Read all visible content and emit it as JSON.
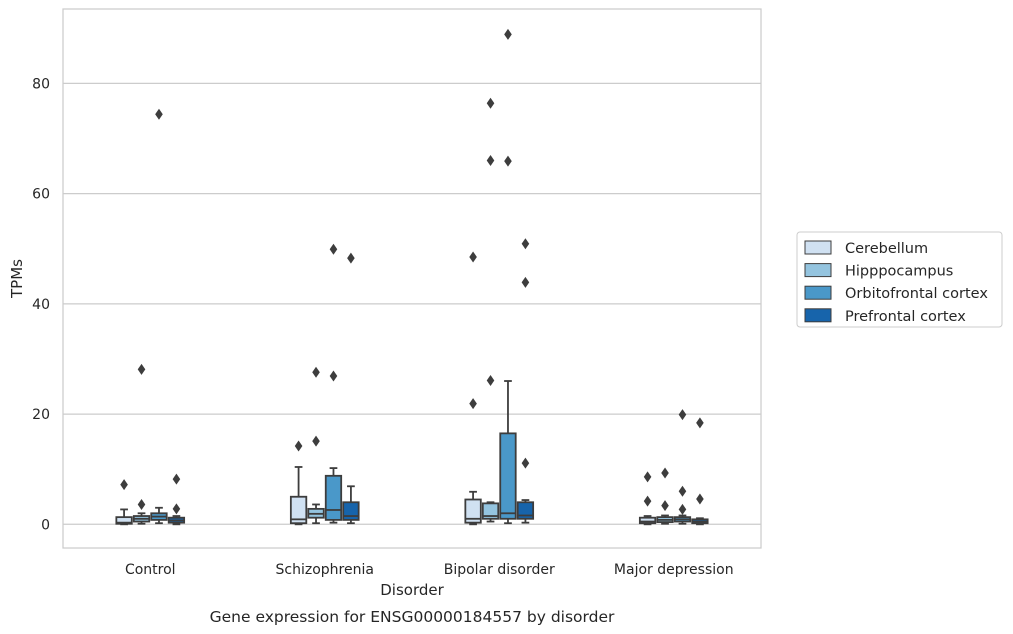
{
  "chart_data": {
    "type": "box",
    "xlabel": "Disorder",
    "ylabel": "TPMs",
    "caption": "Gene expression for ENSG00000184557 by disorder",
    "categories": [
      "Control",
      "Schizophrenia",
      "Bipolar disorder",
      "Major depression"
    ],
    "ylim": [
      -4.3,
      93.5
    ],
    "yticks": [
      0,
      20,
      40,
      60,
      80
    ],
    "grid": "horizontal",
    "legend_position": "right",
    "series": [
      {
        "name": "Cerebellum",
        "color": "#d0e1f2",
        "boxes": [
          {
            "q1": 0.1,
            "median": 0.3,
            "q3": 1.3,
            "whisker_low": 0.0,
            "whisker_high": 2.7,
            "outliers": [
              7.2
            ]
          },
          {
            "q1": 0.2,
            "median": 0.9,
            "q3": 5.0,
            "whisker_low": 0.0,
            "whisker_high": 10.4,
            "outliers": [
              14.2
            ]
          },
          {
            "q1": 0.3,
            "median": 1.0,
            "q3": 4.5,
            "whisker_low": 0.0,
            "whisker_high": 5.9,
            "outliers": [
              21.9,
              48.5
            ]
          },
          {
            "q1": 0.2,
            "median": 0.5,
            "q3": 1.2,
            "whisker_low": 0.0,
            "whisker_high": 1.5,
            "outliers": [
              4.2,
              8.6
            ]
          }
        ]
      },
      {
        "name": "Hipppocampus",
        "color": "#94c4df",
        "boxes": [
          {
            "q1": 0.5,
            "median": 1.0,
            "q3": 1.5,
            "whisker_low": 0.1,
            "whisker_high": 2.0,
            "outliers": [
              3.6,
              28.1
            ]
          },
          {
            "q1": 1.2,
            "median": 1.9,
            "q3": 2.8,
            "whisker_low": 0.2,
            "whisker_high": 3.6,
            "outliers": [
              15.1,
              27.6
            ]
          },
          {
            "q1": 1.0,
            "median": 1.5,
            "q3": 3.8,
            "whisker_low": 0.5,
            "whisker_high": 4.0,
            "outliers": [
              26.1,
              66.0,
              76.4
            ]
          },
          {
            "q1": 0.4,
            "median": 0.8,
            "q3": 1.3,
            "whisker_low": 0.1,
            "whisker_high": 1.6,
            "outliers": [
              3.4,
              9.3
            ]
          }
        ]
      },
      {
        "name": "Orbitofrontal cortex",
        "color": "#4a98c9",
        "boxes": [
          {
            "q1": 0.8,
            "median": 1.4,
            "q3": 2.0,
            "whisker_low": 0.2,
            "whisker_high": 3.0,
            "outliers": [
              74.4
            ]
          },
          {
            "q1": 0.8,
            "median": 2.6,
            "q3": 8.8,
            "whisker_low": 0.3,
            "whisker_high": 10.2,
            "outliers": [
              26.9,
              49.9
            ]
          },
          {
            "q1": 1.0,
            "median": 2.0,
            "q3": 16.5,
            "whisker_low": 0.2,
            "whisker_high": 26.0,
            "outliers": [
              65.9,
              88.9
            ]
          },
          {
            "q1": 0.5,
            "median": 0.9,
            "q3": 1.3,
            "whisker_low": 0.1,
            "whisker_high": 1.6,
            "outliers": [
              2.7,
              6.0,
              19.9
            ]
          }
        ]
      },
      {
        "name": "Prefrontal cortex",
        "color": "#1764ab",
        "boxes": [
          {
            "q1": 0.3,
            "median": 0.7,
            "q3": 1.2,
            "whisker_low": 0.0,
            "whisker_high": 1.5,
            "outliers": [
              2.8,
              8.2
            ]
          },
          {
            "q1": 0.8,
            "median": 1.5,
            "q3": 4.0,
            "whisker_low": 0.2,
            "whisker_high": 6.9,
            "outliers": [
              48.3
            ]
          },
          {
            "q1": 1.0,
            "median": 1.6,
            "q3": 4.0,
            "whisker_low": 0.3,
            "whisker_high": 4.4,
            "outliers": [
              11.1,
              43.9,
              50.9
            ]
          },
          {
            "q1": 0.2,
            "median": 0.5,
            "q3": 0.9,
            "whisker_low": 0.0,
            "whisker_high": 1.1,
            "outliers": [
              4.6,
              18.4
            ]
          }
        ]
      }
    ]
  }
}
